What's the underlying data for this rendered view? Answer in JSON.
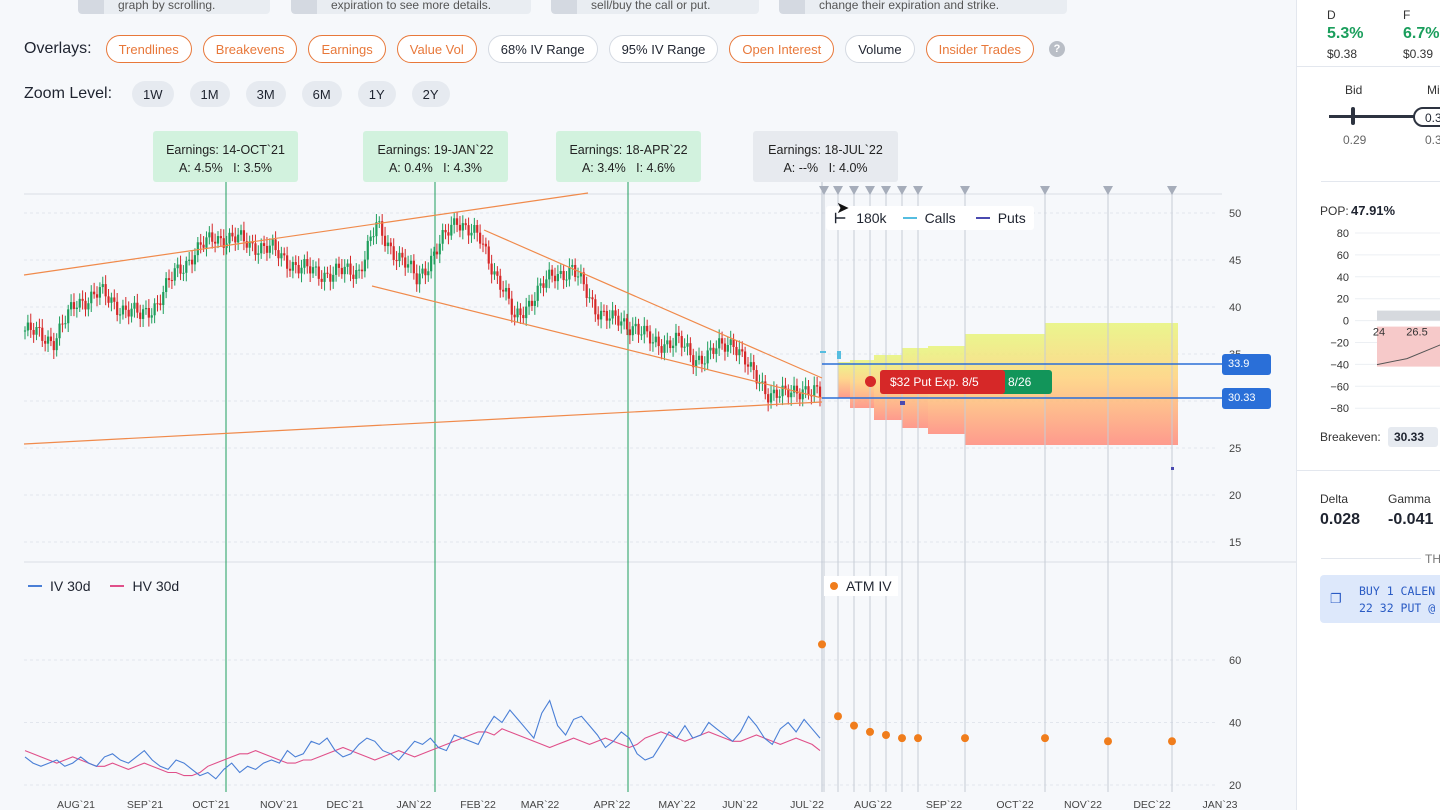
{
  "tips": [
    {
      "text": "graph by scrolling."
    },
    {
      "text": "expiration to see more details."
    },
    {
      "text": "sell/buy the call or put."
    },
    {
      "text": "change their expiration and strike."
    }
  ],
  "overlays": {
    "label": "Overlays:",
    "items": [
      {
        "label": "Trendlines",
        "active": true
      },
      {
        "label": "Breakevens",
        "active": true
      },
      {
        "label": "Earnings",
        "active": true
      },
      {
        "label": "Value Vol",
        "active": true
      },
      {
        "label": "68% IV Range",
        "active": false
      },
      {
        "label": "95% IV Range",
        "active": false
      },
      {
        "label": "Open Interest",
        "active": true
      },
      {
        "label": "Volume",
        "active": false
      },
      {
        "label": "Insider Trades",
        "active": true
      }
    ],
    "help": "?"
  },
  "zoom": {
    "label": "Zoom Level:",
    "levels": [
      "1W",
      "1M",
      "3M",
      "6M",
      "1Y",
      "2Y"
    ]
  },
  "earnings": [
    {
      "title": "Earnings: 14-OCT`21",
      "actual": "A: 4.5%",
      "implied": "I: 3.5%"
    },
    {
      "title": "Earnings: 19-JAN`22",
      "actual": "A: 0.4%",
      "implied": "I: 4.3%"
    },
    {
      "title": "Earnings: 18-APR`22",
      "actual": "A: 3.4%",
      "implied": "I: 4.6%"
    },
    {
      "title": "Earnings: 18-JUL`22",
      "actual": "A: --%",
      "implied": "I: 4.0%"
    }
  ],
  "chart_data": {
    "type": "line",
    "price_axis": {
      "ticks": [
        "50",
        "45",
        "40",
        "35",
        "30",
        "25",
        "20",
        "15"
      ],
      "ylim": [
        15,
        52
      ]
    },
    "iv_axis": {
      "ticks": [
        "60",
        "40",
        "20"
      ]
    },
    "x_ticks": [
      "AUG`21",
      "SEP`21",
      "OCT`21",
      "NOV`21",
      "DEC`21",
      "JAN`22",
      "FEB`22",
      "MAR`22",
      "APR`22",
      "MAY`22",
      "JUN`22",
      "JUL`22",
      "AUG`22",
      "SEP`22",
      "OCT`22",
      "NOV`22",
      "DEC`22",
      "JAN`23"
    ],
    "oi_legend": {
      "volume": "180k",
      "calls": "Calls",
      "puts": "Puts"
    },
    "price_levels": [
      {
        "value": 33.9,
        "label": "33.9"
      },
      {
        "value": 30.33,
        "label": "30.33"
      }
    ],
    "position_tags": [
      {
        "label": "$32 Put Exp. 8/5",
        "color": "#d62828"
      },
      {
        "label": "8/26",
        "color": "#12955a"
      }
    ],
    "iv_legend": {
      "iv": "IV 30d",
      "hv": "HV 30d",
      "atm": "ATM IV"
    },
    "iv_hv_series": {
      "iv": [
        29,
        27,
        26,
        27,
        28,
        26,
        27,
        29,
        27,
        26,
        29,
        30,
        28,
        27,
        29,
        31,
        28,
        26,
        25,
        28,
        27,
        25,
        23,
        24,
        22,
        25,
        27,
        24,
        26,
        25,
        27,
        28,
        27,
        31,
        29,
        30,
        34,
        33,
        35,
        31,
        29,
        30,
        33,
        35,
        34,
        31,
        30,
        28,
        31,
        34,
        33,
        35,
        32,
        31,
        36,
        35,
        34,
        33,
        38,
        42,
        40,
        44,
        41,
        38,
        35,
        43,
        47,
        39,
        36,
        41,
        42,
        39,
        36,
        32,
        34,
        37,
        35,
        30,
        28,
        29,
        33,
        37,
        35,
        39,
        35,
        36,
        40,
        38,
        36,
        34,
        37,
        42,
        39,
        35,
        33,
        38,
        40,
        37,
        41,
        38,
        35
      ],
      "hv": [
        31,
        30,
        29,
        28,
        27,
        28,
        29,
        28,
        27,
        26,
        26,
        27,
        26,
        25,
        26,
        27,
        26,
        25,
        24,
        24,
        23,
        23,
        24,
        26,
        27,
        28,
        29,
        30,
        30,
        31,
        30,
        29,
        28,
        27,
        27,
        28,
        28,
        29,
        30,
        31,
        32,
        31,
        30,
        29,
        28,
        29,
        30,
        31,
        30,
        29,
        30,
        31,
        32,
        33,
        34,
        35,
        36,
        37,
        37,
        36,
        38,
        37,
        36,
        35,
        34,
        33,
        32,
        33,
        34,
        35,
        34,
        33,
        34,
        35,
        34,
        33,
        32,
        33,
        35,
        36,
        37,
        36,
        35,
        34,
        35,
        36,
        37,
        36,
        35,
        34,
        34,
        35,
        36,
        35,
        34,
        33,
        34,
        35,
        34,
        33,
        31
      ],
      "atm_iv": [
        65,
        42,
        39,
        37,
        36,
        35,
        35,
        35,
        35,
        34,
        34
      ]
    }
  },
  "right_panel": {
    "greek_cols": [
      {
        "letter": "D",
        "pct": "5.3%",
        "price": "$0.38"
      },
      {
        "letter": "F",
        "pct": "6.7%",
        "price": "$0.39"
      }
    ],
    "bid_label": "Bid",
    "mid_label": "Mi",
    "bid_value": "0.29",
    "mid_value": "0.3",
    "mid_box": "0.3",
    "pop_label": "POP:",
    "pop_value": "47.91%",
    "pnl_ticks": [
      "80",
      "60",
      "40",
      "20",
      "0",
      "−20",
      "−40",
      "−60",
      "−80"
    ],
    "pnl_x": [
      "24",
      "26.5"
    ],
    "breakeven_label": "Breakeven:",
    "breakeven_value": "30.33",
    "delta_label": "Delta",
    "delta_value": "0.028",
    "gamma_label": "Gamma",
    "gamma_value": "-0.041",
    "section_label": "TH",
    "trade_line1": "BUY 1 CALEN",
    "trade_line2": "22 32 PUT @"
  },
  "colors": {
    "accent": "#e8783a",
    "green_text": "#1a9e5c",
    "buy_box": "#dde8fb",
    "iv_line": "#4a7fd6",
    "hv_line": "#e0508a"
  }
}
